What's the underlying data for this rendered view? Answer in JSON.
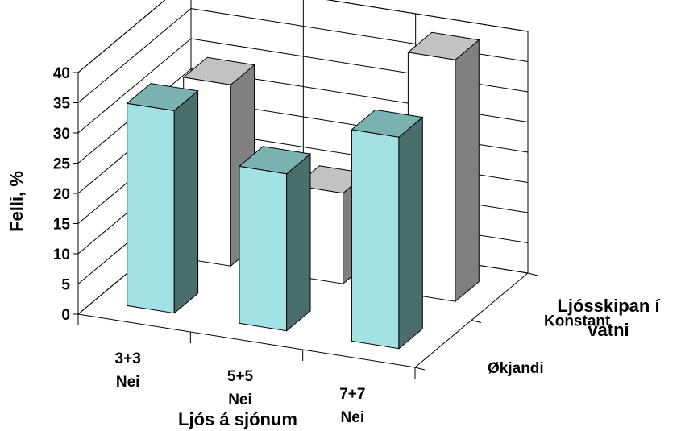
{
  "chart_data": {
    "type": "bar",
    "style": "3d-clustered-depth",
    "x_categories": [
      [
        "3+3",
        "Nei"
      ],
      [
        "5+5",
        "Nei"
      ],
      [
        "7+7",
        "Nei"
      ]
    ],
    "depth_categories": [
      "Økjandi",
      "Konstant"
    ],
    "series": [
      {
        "name": "Økjandi",
        "values": [
          33.5,
          26,
          35
        ],
        "colors": {
          "front": "#a3e2e4",
          "top": "#7ab2b2",
          "side": "#4b6e6c"
        }
      },
      {
        "name": "Konstant",
        "values": [
          30,
          15,
          40
        ],
        "colors": {
          "front": "#ffffff",
          "top": "#c2c2c2",
          "side": "#808080"
        }
      }
    ],
    "ylabel": "Felli, %",
    "xlabel": "Ljós á sjónum",
    "depth_label": [
      "Ljósskipan í",
      "vatni"
    ],
    "ylim": [
      0,
      40
    ],
    "yticks": [
      0,
      5,
      10,
      15,
      20,
      25,
      30,
      35,
      40
    ],
    "grid": true
  }
}
